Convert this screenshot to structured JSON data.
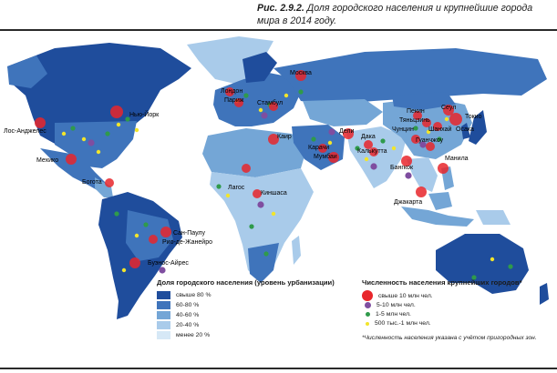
{
  "caption": {
    "number": "Рис. 2.9.2.",
    "text": "Доля городского населения и крупнейшие города мира в 2014 году."
  },
  "colors": {
    "ocean": "#ffffff",
    "over80": "#1f4d9c",
    "p60_80": "#3f74bb",
    "p40_60": "#74a6d6",
    "p20_40": "#a9cbea",
    "under20": "#d6e8f6",
    "city_10m": "#e8262b",
    "city_5_10m": "#7f4ea0",
    "city_1_5m": "#2f9a4b",
    "city_500k_1m": "#f2e52b"
  },
  "legend_urban": {
    "title": "Доля городского населения (уровень урбанизации)",
    "items": [
      {
        "label": "свыше 80 %",
        "color": "#1f4d9c"
      },
      {
        "label": "60-80 %",
        "color": "#3f74bb"
      },
      {
        "label": "40-60 %",
        "color": "#74a6d6"
      },
      {
        "label": "20-40 %",
        "color": "#a9cbea"
      },
      {
        "label": "менее 20 %",
        "color": "#d6e8f6"
      }
    ]
  },
  "legend_cities": {
    "title": "Численность населения крупнейших городов*",
    "items": [
      {
        "label": "свыше 10 млн чел.",
        "color": "#e8262b"
      },
      {
        "label": "5-10 млн чел.",
        "color": "#7f4ea0"
      },
      {
        "label": "1-5 млн чел.",
        "color": "#2f9a4b"
      },
      {
        "label": "500 тыс.-1 млн чел.",
        "color": "#f2e52b"
      }
    ]
  },
  "note": "*Численность населения указана с учётом пригородных зон.",
  "cities": {
    "los_angeles": "Лос-Анджелес",
    "new_york": "Нью-Йорк",
    "mexico": "Мехико",
    "bogota": "Богота",
    "sao_paulo": "Сан-Паулу",
    "rio": "Рио-де-Жанейро",
    "buenos_aires": "Буэнос-Айрес",
    "london": "Лондон",
    "paris": "Париж",
    "moscow": "Москва",
    "istanbul": "Стамбул",
    "cairo": "Каир",
    "lagos": "Лагос",
    "kinshasa": "Киншаса",
    "karachi": "Карачи",
    "delhi": "Дели",
    "mumbai": "Мумбаи",
    "dhaka": "Дака",
    "kolkata": "Калькутта",
    "beijing": "Пекин",
    "tianjin": "Тяньцзинь",
    "seoul": "Сеул",
    "tokyo": "Токио",
    "osaka": "Осака",
    "shanghai": "Шанхай",
    "chongqing": "Чунцин",
    "guangzhou": "Гуанчжоу",
    "bangkok": "Бангкок",
    "manila": "Манила",
    "jakarta": "Джакарта"
  }
}
